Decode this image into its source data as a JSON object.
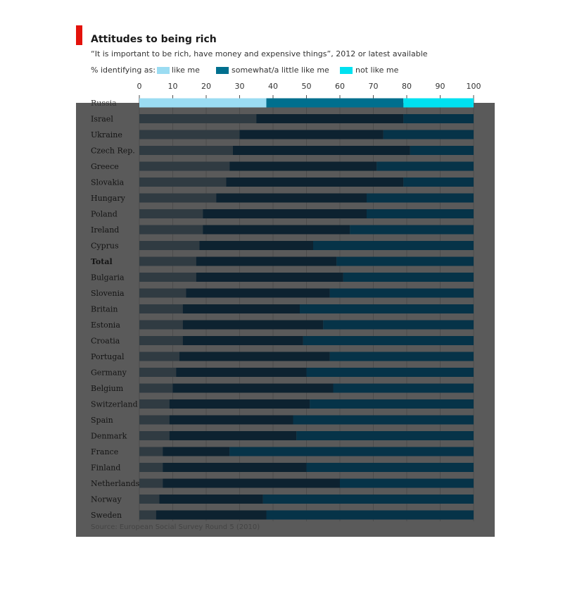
{
  "title": "Attitudes to being rich",
  "subtitle": "“It is important to be rich, have money and expensive things”, 2012 or latest available",
  "legend": {
    "prefix": "% identifying as:",
    "items": [
      {
        "label": "like me",
        "color": "#9bdcf2"
      },
      {
        "label": "somewhat/a little like me",
        "color": "#006f8e"
      },
      {
        "label": "not like me",
        "color": "#00e1f0"
      }
    ]
  },
  "source": "Source: European Social Survey Round 5 (2010)",
  "chart_data": {
    "type": "bar",
    "orientation": "horizontal",
    "stacked": true,
    "xlim": [
      0,
      100
    ],
    "x_ticks": [
      0,
      10,
      20,
      30,
      40,
      50,
      60,
      70,
      80,
      90,
      100
    ],
    "grid": true,
    "legend_position": "top",
    "categories": [
      "Russia",
      "Israel",
      "Ukraine",
      "Czech Rep.",
      "Greece",
      "Slovakia",
      "Hungary",
      "Poland",
      "Ireland",
      "Cyprus",
      "Total",
      "Bulgaria",
      "Slovenia",
      "Britain",
      "Estonia",
      "Croatia",
      "Portugal",
      "Germany",
      "Belgium",
      "Switzerland",
      "Spain",
      "Denmark",
      "France",
      "Finland",
      "Netherlands",
      "Norway",
      "Sweden"
    ],
    "bold_categories": [
      "Total"
    ],
    "series": [
      {
        "name": "like me",
        "color": "#9bdcf2",
        "values": [
          38,
          35,
          30,
          28,
          27,
          26,
          23,
          19,
          19,
          18,
          17,
          17,
          14,
          13,
          13,
          13,
          12,
          11,
          10,
          9,
          9,
          9,
          7,
          7,
          7,
          6,
          5
        ]
      },
      {
        "name": "somewhat/a little like me",
        "color": "#006f8e",
        "values": [
          41,
          44,
          43,
          53,
          44,
          53,
          45,
          49,
          44,
          34,
          42,
          44,
          43,
          35,
          42,
          36,
          45,
          39,
          48,
          42,
          37,
          38,
          20,
          43,
          53,
          31,
          33
        ]
      },
      {
        "name": "not like me",
        "color": "#00e1f0",
        "values": [
          21,
          21,
          27,
          19,
          29,
          21,
          32,
          32,
          37,
          48,
          41,
          39,
          43,
          52,
          45,
          51,
          43,
          50,
          42,
          49,
          54,
          53,
          73,
          50,
          40,
          63,
          62
        ]
      }
    ]
  }
}
